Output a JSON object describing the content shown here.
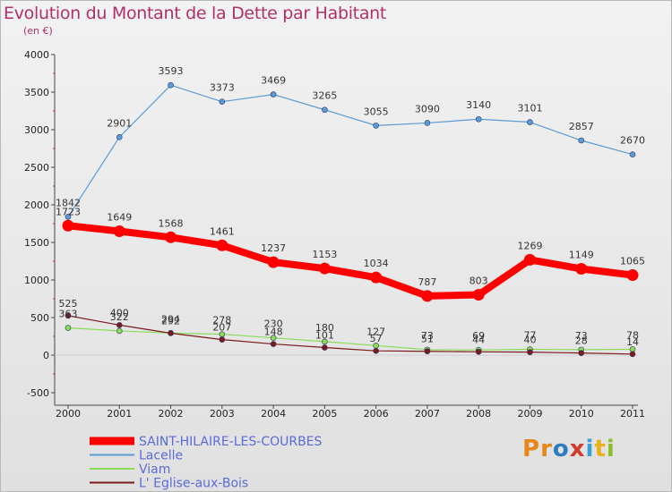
{
  "title": "Evolution du Montant de la Dette par Habitant",
  "subtitle": "(en €)",
  "logo": [
    "P",
    "r",
    "o",
    "x",
    "i",
    "t",
    "i"
  ],
  "logo_colors": [
    "#e8861a",
    "#e8861a",
    "#2f7bbf",
    "#d33a2c",
    "#3aa0d8",
    "#e8b01a",
    "#8abf2a"
  ],
  "chart_data": {
    "type": "line",
    "title": "Evolution du Montant de la Dette par Habitant",
    "subtitle": "(en €)",
    "x": [
      "2000",
      "2001",
      "2002",
      "2003",
      "2004",
      "2005",
      "2006",
      "2007",
      "2008",
      "2009",
      "2010",
      "2011"
    ],
    "yticks": [
      "-500",
      "0",
      "500",
      "1000",
      "1500",
      "2000",
      "2500",
      "3000",
      "3500",
      "4000"
    ],
    "ylim": [
      -500,
      4000
    ],
    "grid": false,
    "legend_position": "bottom-left",
    "series": [
      {
        "name": "SAINT-HILAIRE-LES-COURBES",
        "color": "#ff0000",
        "values": [
          1723,
          1649,
          1568,
          1461,
          1237,
          1153,
          1034,
          787,
          803,
          1269,
          1149,
          1065
        ],
        "labels": [
          "1723",
          "1649",
          "1568",
          "1461",
          "1237",
          "1153",
          "1034",
          "787",
          "803",
          "1269",
          "1149",
          "1065"
        ]
      },
      {
        "name": "Lacelle",
        "color": "#5b9bd5",
        "values": [
          1842,
          2901,
          3593,
          3373,
          3469,
          3265,
          3055,
          3090,
          3140,
          3101,
          2857,
          2670
        ],
        "labels": [
          "1842",
          "2901",
          "3593",
          "3373",
          "3469",
          "3265",
          "3055",
          "3090",
          "3140",
          "3101",
          "2857",
          "2670"
        ]
      },
      {
        "name": "Viam",
        "color": "#88dd55",
        "values": [
          363,
          322,
          294,
          278,
          230,
          180,
          127,
          73,
          69,
          77,
          73,
          78
        ],
        "labels": [
          "363",
          "322",
          "294",
          "278",
          "230",
          "180",
          "127",
          "73",
          "69",
          "77",
          "73",
          "78"
        ]
      },
      {
        "name": "L' Eglise-aux-Bois",
        "color": "#7a1a1a",
        "values": [
          525,
          400,
          292,
          207,
          148,
          101,
          57,
          51,
          44,
          40,
          28,
          14
        ],
        "labels": [
          "525",
          "400",
          "292",
          "207",
          "148",
          "101",
          "57",
          "51",
          "44",
          "40",
          "28",
          "14"
        ]
      }
    ]
  }
}
